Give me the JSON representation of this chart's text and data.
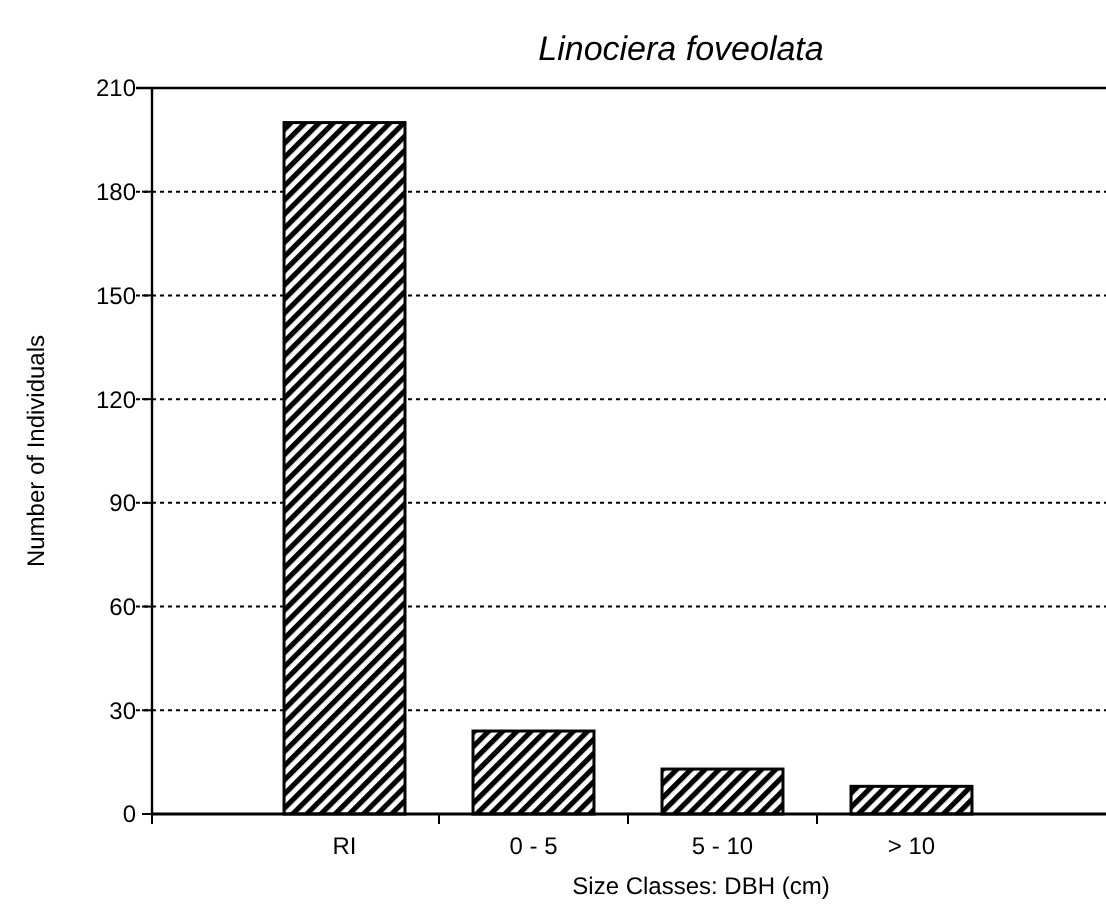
{
  "chart_data": {
    "type": "bar",
    "title": "Linociera foveolata",
    "xlabel": "Size Classes: DBH (cm)",
    "ylabel": "Number of Individuals",
    "categories": [
      "RI",
      "0 - 5",
      "5 - 10",
      "> 10"
    ],
    "values": [
      200,
      24,
      13,
      8
    ],
    "color": "#000000",
    "ylim": [
      0,
      210
    ],
    "yticks": [
      0,
      30,
      60,
      90,
      120,
      150,
      180,
      210
    ],
    "grid": "y"
  }
}
